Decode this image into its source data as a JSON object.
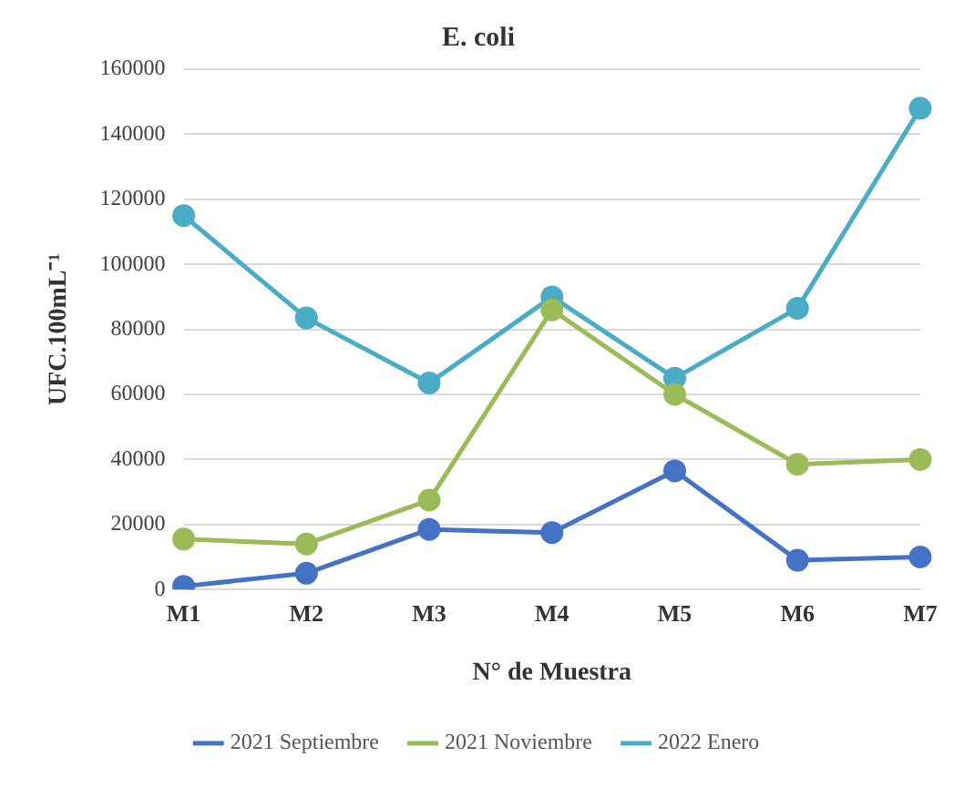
{
  "chart_data": {
    "type": "line",
    "title": "E. coli",
    "xlabel": "N° de Muestra",
    "ylabel": "UFC.100mL⁻¹",
    "categories": [
      "M1",
      "M2",
      "M3",
      "M4",
      "M5",
      "M6",
      "M7"
    ],
    "series": [
      {
        "name": "2021 Septiembre",
        "color": "#4472c4",
        "values": [
          1000,
          5000,
          18500,
          17500,
          36500,
          9000,
          10000
        ]
      },
      {
        "name": "2021 Noviembre",
        "color": "#9bbb59",
        "values": [
          15500,
          14000,
          27500,
          86000,
          60000,
          38500,
          40000
        ]
      },
      {
        "name": "2022 Enero",
        "color": "#4bacc6",
        "values": [
          115000,
          83500,
          63500,
          90000,
          65000,
          86500,
          148000
        ]
      }
    ],
    "ylim": [
      0,
      160000
    ],
    "yticks": [
      0,
      20000,
      40000,
      60000,
      80000,
      100000,
      120000,
      140000,
      160000
    ],
    "grid": "y",
    "legend": "bottom",
    "marker": "circle",
    "line_style": "solid"
  }
}
